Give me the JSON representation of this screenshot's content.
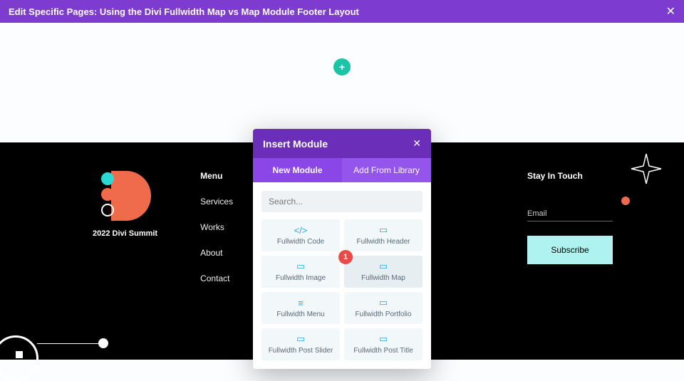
{
  "header": {
    "title": "Edit Specific Pages: Using the Divi Fullwidth Map vs Map Module Footer Layout"
  },
  "footer": {
    "tagline": "2022 Divi Summit",
    "menu_title": "Menu",
    "menu_items": [
      "Services",
      "Works",
      "About",
      "Contact"
    ],
    "touch_title": "Stay In Touch",
    "field_label": "Email",
    "subscribe_label": "Subscribe"
  },
  "modal": {
    "title": "Insert Module",
    "tab_new": "New Module",
    "tab_library": "Add From Library",
    "search_placeholder": "Search...",
    "badge": "1",
    "modules": [
      {
        "label": "Fullwidth Code",
        "icon": "</>"
      },
      {
        "label": "Fullwidth Header",
        "icon": "▭"
      },
      {
        "label": "Fullwidth Image",
        "icon": "▭"
      },
      {
        "label": "Fullwidth Map",
        "icon": "▭",
        "selected": true
      },
      {
        "label": "Fullwidth Menu",
        "icon": "≡"
      },
      {
        "label": "Fullwidth Portfolio",
        "icon": "▭"
      },
      {
        "label": "Fullwidth Post Slider",
        "icon": "▭"
      },
      {
        "label": "Fullwidth Post Title",
        "icon": "▭"
      }
    ]
  }
}
